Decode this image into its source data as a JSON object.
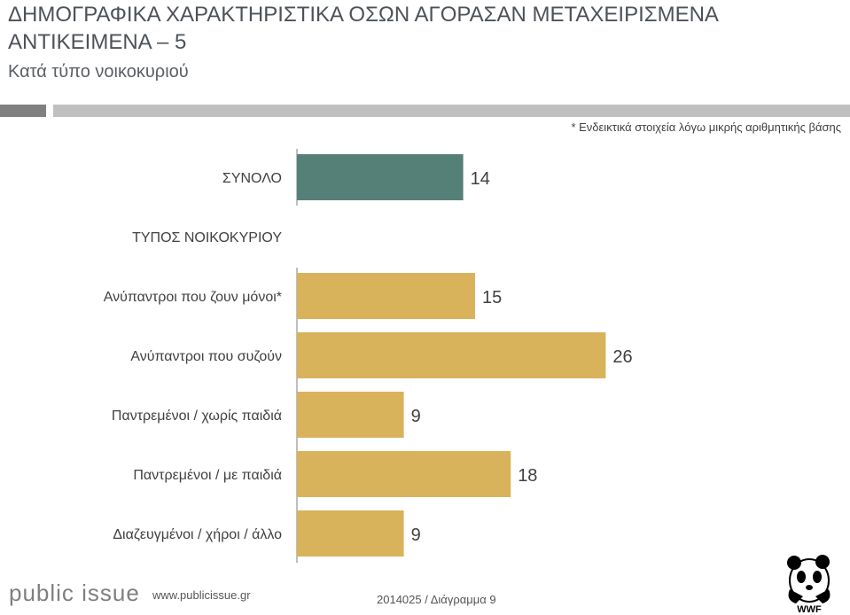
{
  "header": {
    "title": "ΔΗΜΟΓΡΑΦΙΚΑ ΧΑΡΑΚΤΗΡΙΣΤΙΚΑ ΟΣΩΝ ΑΓΟΡΑΣΑΝ ΜΕΤΑΧΕΙΡΙΣΜΕΝΑ ΑΝΤΙΚΕΙΜΕΝΑ – 5",
    "subtitle": "Κατά τύπο νοικοκυριού",
    "note": "* Ενδεικτικά στοιχεία λόγω μικρής αριθμητικής βάσης",
    "dark_color": "#808080",
    "light_color": "#c0c0c0"
  },
  "chart_data": {
    "type": "bar",
    "orientation": "horizontal",
    "group_header": "ΤΥΠΟΣ ΝΟΙΚΟΚΥΡΙΟΥ",
    "categories": [
      "ΣΥΝΟΛΟ",
      "Ανύπαντροι που ζουν μόνοι*",
      "Ανύπαντροι που συζούν",
      "Παντρεμένοι / χωρίς παιδιά",
      "Παντρεμένοι / με παιδιά",
      "Διαζευγμένοι / χήροι / άλλο"
    ],
    "values": [
      14,
      15,
      26,
      9,
      18,
      9
    ],
    "colors": [
      "#548078",
      "#d9b25c",
      "#d9b25c",
      "#d9b25c",
      "#d9b25c",
      "#d9b25c"
    ],
    "xlim": [
      0,
      30
    ],
    "grid": false,
    "legend": "none"
  },
  "footer": {
    "logo": "public issue",
    "url": "www.publicissue.gr",
    "code": "2014025 / Διάγραμμα 9",
    "wwf": "WWF"
  }
}
